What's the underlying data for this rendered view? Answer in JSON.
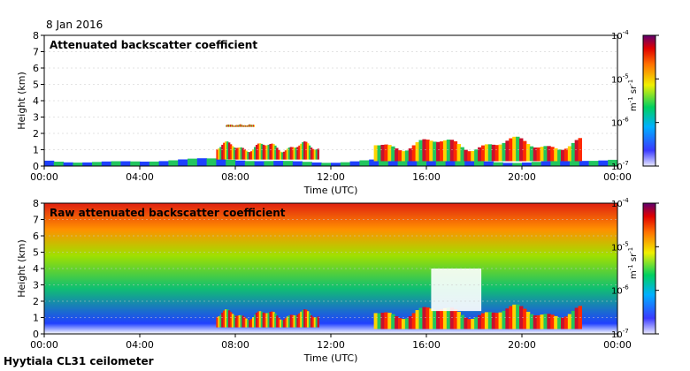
{
  "date": "8 Jan 2016",
  "site": "Hyytiala CL31 ceilometer",
  "colors": {
    "cloud": "#c8102e",
    "high": "#ff2a00",
    "mid": "#ffd400",
    "low": "#22c55e",
    "bg": "#1e40ff",
    "grid": "#c8c8c8"
  },
  "chart_data": [
    {
      "type": "heatmap",
      "title": "Attenuated backscatter coefficient",
      "xlabel": "Time (UTC)",
      "ylabel": "Height (km)",
      "xlim": [
        0,
        24
      ],
      "ylim": [
        0,
        8
      ],
      "xticks": [
        "00:00",
        "04:00",
        "08:00",
        "12:00",
        "16:00",
        "20:00",
        "00:00"
      ],
      "yticks": [
        "0",
        "1",
        "2",
        "3",
        "4",
        "5",
        "6",
        "7",
        "8"
      ],
      "colorbar": {
        "label": "m-1 sr-1",
        "label_parts": {
          "m": "m",
          "m_exp": "-1",
          "sr": " sr",
          "sr_exp": "-1"
        },
        "scale": "log",
        "ticks": [
          {
            "base": "10",
            "exp": "-4"
          },
          {
            "base": "10",
            "exp": "-5"
          },
          {
            "base": "10",
            "exp": "-6"
          },
          {
            "base": "10",
            "exp": "-7"
          }
        ]
      },
      "features": [
        {
          "name": "boundary layer",
          "t_start": 0,
          "t_end": 24,
          "top_km": 0.6,
          "level": "low"
        },
        {
          "name": "cloud layer 1",
          "t_start": 7.2,
          "t_end": 11.5,
          "base_km": 0.4,
          "top_km": 1.8,
          "level": "high"
        },
        {
          "name": "cloud layer 2",
          "t_start": 13.8,
          "t_end": 22.5,
          "base_km": 0.3,
          "top_km": 2.2,
          "level": "high"
        },
        {
          "name": "elevated cloud",
          "t_start": 7.6,
          "t_end": 8.8,
          "base_km": 2.4,
          "top_km": 2.6,
          "level": "high"
        }
      ]
    },
    {
      "type": "heatmap",
      "title": "Raw attenuated backscatter coefficient",
      "xlabel": "Time (UTC)",
      "ylabel": "Height (km)",
      "xlim": [
        0,
        24
      ],
      "ylim": [
        0,
        8
      ],
      "xticks": [
        "00:00",
        "04:00",
        "08:00",
        "12:00",
        "16:00",
        "20:00",
        "00:00"
      ],
      "yticks": [
        "0",
        "1",
        "2",
        "3",
        "4",
        "5",
        "6",
        "7",
        "8"
      ],
      "colorbar": {
        "label": "m-1 sr-1",
        "label_parts": {
          "m": "m",
          "m_exp": "-1",
          "sr": " sr",
          "sr_exp": "-1"
        },
        "scale": "log",
        "ticks": [
          {
            "base": "10",
            "exp": "-4"
          },
          {
            "base": "10",
            "exp": "-5"
          },
          {
            "base": "10",
            "exp": "-6"
          },
          {
            "base": "10",
            "exp": "-7"
          }
        ]
      },
      "features": [
        {
          "name": "noise field",
          "t_start": 0,
          "t_end": 24,
          "base_km": 0.5,
          "top_km": 8,
          "level": "noisy"
        },
        {
          "name": "cloud layer 1",
          "t_start": 7.2,
          "t_end": 11.5,
          "base_km": 0.4,
          "top_km": 1.8,
          "level": "high"
        },
        {
          "name": "cloud layer 2",
          "t_start": 13.8,
          "t_end": 22.5,
          "base_km": 0.3,
          "top_km": 2.2,
          "level": "high"
        },
        {
          "name": "blank gap",
          "t_start": 16.2,
          "t_end": 18.3,
          "base_km": 1.4,
          "top_km": 4.0,
          "level": "none"
        }
      ]
    }
  ]
}
